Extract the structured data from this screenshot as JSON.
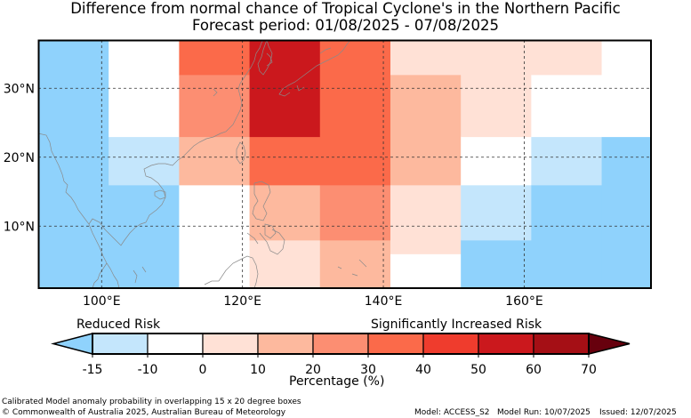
{
  "title": {
    "line1": "Difference from normal chance of Tropical Cyclone's in the Northern Pacific",
    "line2": "Forecast period: 01/08/2025 - 07/08/2025"
  },
  "map": {
    "lon_range": [
      91,
      178
    ],
    "lat_range": [
      1,
      37
    ],
    "lat_labels": [
      "30°N",
      "20°N",
      "10°N"
    ],
    "lon_labels": [
      "100°E",
      "120°E",
      "140°E",
      "160°E"
    ],
    "colors": {
      "neg15": "#8fd2fc",
      "neg10": "#c4e6fc",
      "zero": "#ffffff",
      "p0_10": "#ffe1d6",
      "p10_20": "#fdb99e",
      "p20_30": "#fc8e72",
      "p30_40": "#fb6a4a",
      "p40_50": "#ef3c2d",
      "p50_60": "#cb181d",
      "p60_70": "#a50f15",
      "p70": "#67000d",
      "coast": "#8a8a8a",
      "frame": "#000000"
    },
    "cells": [
      {
        "lon": [
          91,
          101
        ],
        "lat": [
          1,
          37
        ],
        "c": "neg15"
      },
      {
        "lon": [
          101,
          111
        ],
        "lat": [
          1,
          16
        ],
        "c": "neg15"
      },
      {
        "lon": [
          101,
          111
        ],
        "lat": [
          16,
          23
        ],
        "c": "neg10"
      },
      {
        "lon": [
          101,
          111
        ],
        "lat": [
          23,
          37
        ],
        "c": "zero"
      },
      {
        "lon": [
          111,
          121
        ],
        "lat": [
          1,
          16
        ],
        "c": "zero"
      },
      {
        "lon": [
          111,
          121
        ],
        "lat": [
          16,
          23
        ],
        "c": "p10_20"
      },
      {
        "lon": [
          111,
          121
        ],
        "lat": [
          23,
          32
        ],
        "c": "p20_30"
      },
      {
        "lon": [
          111,
          121
        ],
        "lat": [
          32,
          37
        ],
        "c": "p30_40"
      },
      {
        "lon": [
          121,
          131
        ],
        "lat": [
          1,
          8
        ],
        "c": "p0_10"
      },
      {
        "lon": [
          121,
          131
        ],
        "lat": [
          8,
          16
        ],
        "c": "p10_20"
      },
      {
        "lon": [
          121,
          131
        ],
        "lat": [
          16,
          23
        ],
        "c": "p30_40"
      },
      {
        "lon": [
          121,
          131
        ],
        "lat": [
          23,
          37
        ],
        "c": "p50_60"
      },
      {
        "lon": [
          131,
          141
        ],
        "lat": [
          1,
          8
        ],
        "c": "p10_20"
      },
      {
        "lon": [
          131,
          141
        ],
        "lat": [
          8,
          16
        ],
        "c": "p20_30"
      },
      {
        "lon": [
          131,
          141
        ],
        "lat": [
          16,
          37
        ],
        "c": "p30_40"
      },
      {
        "lon": [
          141,
          151
        ],
        "lat": [
          1,
          6
        ],
        "c": "zero"
      },
      {
        "lon": [
          141,
          151
        ],
        "lat": [
          6,
          16
        ],
        "c": "p0_10"
      },
      {
        "lon": [
          141,
          151
        ],
        "lat": [
          16,
          32
        ],
        "c": "p10_20"
      },
      {
        "lon": [
          141,
          151
        ],
        "lat": [
          32,
          37
        ],
        "c": "p0_10"
      },
      {
        "lon": [
          151,
          161
        ],
        "lat": [
          1,
          8
        ],
        "c": "neg15"
      },
      {
        "lon": [
          151,
          161
        ],
        "lat": [
          8,
          16
        ],
        "c": "neg10"
      },
      {
        "lon": [
          151,
          161
        ],
        "lat": [
          16,
          23
        ],
        "c": "zero"
      },
      {
        "lon": [
          151,
          161
        ],
        "lat": [
          23,
          32
        ],
        "c": "p0_10"
      },
      {
        "lon": [
          151,
          161
        ],
        "lat": [
          32,
          37
        ],
        "c": "p0_10"
      },
      {
        "lon": [
          161,
          171
        ],
        "lat": [
          1,
          16
        ],
        "c": "neg15"
      },
      {
        "lon": [
          161,
          171
        ],
        "lat": [
          16,
          23
        ],
        "c": "neg10"
      },
      {
        "lon": [
          161,
          171
        ],
        "lat": [
          23,
          32
        ],
        "c": "zero"
      },
      {
        "lon": [
          161,
          171
        ],
        "lat": [
          32,
          37
        ],
        "c": "p0_10"
      },
      {
        "lon": [
          171,
          178
        ],
        "lat": [
          1,
          23
        ],
        "c": "neg15"
      },
      {
        "lon": [
          171,
          178
        ],
        "lat": [
          23,
          37
        ],
        "c": "zero"
      }
    ]
  },
  "legend": {
    "reduced_label": "Reduced Risk",
    "increased_label": "Significantly Increased Risk",
    "ticks": [
      "-15",
      "-10",
      "0",
      "10",
      "20",
      "30",
      "40",
      "50",
      "60",
      "70"
    ],
    "bins": [
      "neg15",
      "neg10",
      "zero",
      "p0_10",
      "p10_20",
      "p20_30",
      "p30_40",
      "p40_50",
      "p50_60",
      "p60_70",
      "p70"
    ],
    "axis_label": "Percentage (%)"
  },
  "footer": {
    "note": "Calibrated Model anomaly probability in overlapping 15 x 20 degree boxes",
    "copyright": "© Commonwealth of Australia 2025, Australian Bureau of Meteorology",
    "model": "Model: ACCESS_S2",
    "model_run": "Model Run: 10/07/2025",
    "issued": "Issued: 12/07/2025"
  }
}
